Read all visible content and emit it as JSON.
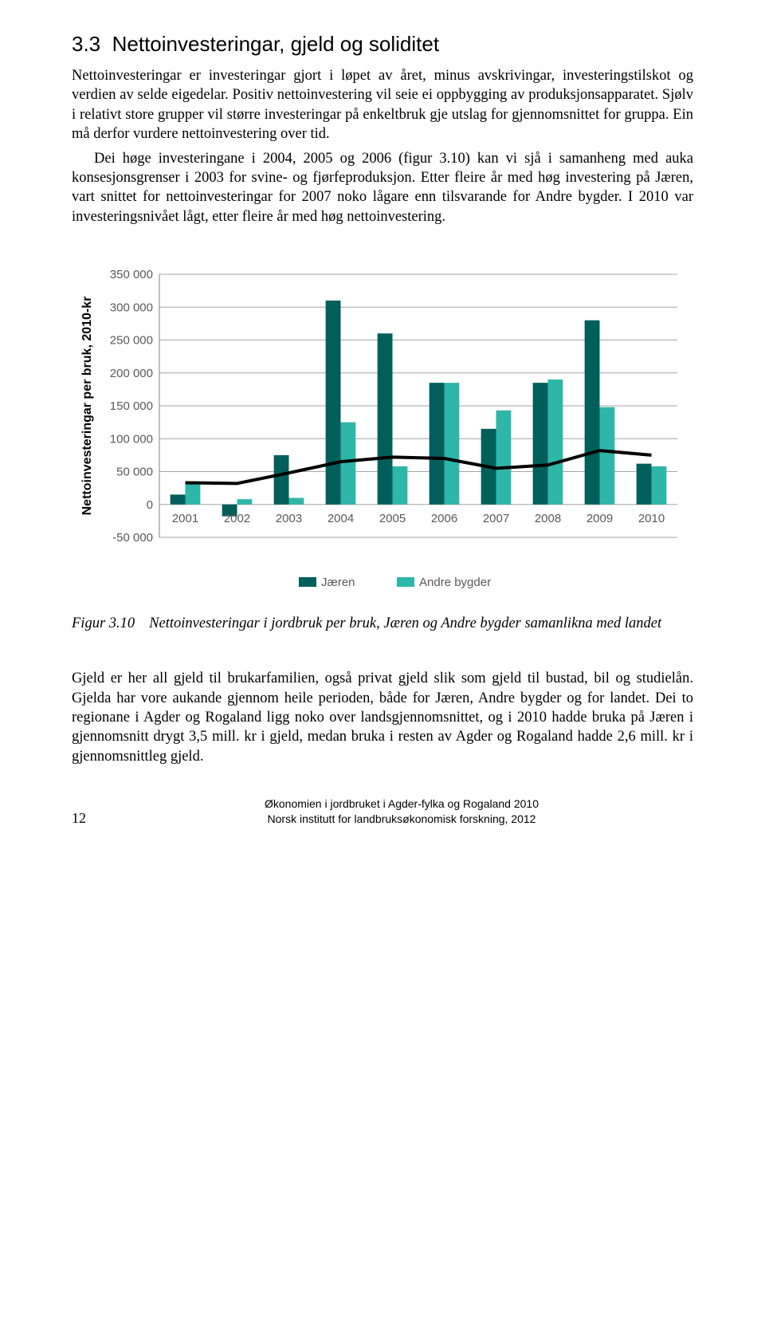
{
  "section": {
    "number": "3.3",
    "title": "Nettoinvesteringar, gjeld og soliditet"
  },
  "para1": "Nettoinvesteringar er investeringar gjort i løpet av året, minus avskrivingar, investeringstilskot og verdien av selde eigedelar. Positiv nettoinvestering vil seie ei oppbygging av produksjonsapparatet. Sjølv i relativt store grupper vil større investeringar på enkeltbruk gje utslag for gjennomsnittet for gruppa. Ein må derfor vurdere nettoinvestering over tid.",
  "para2": "Dei høge investeringane i 2004, 2005 og 2006 (figur 3.10) kan vi sjå i samanheng med auka konsesjonsgrenser i 2003 for svine- og fjørfeproduksjon. Etter fleire år med høg investering på Jæren, vart snittet for nettoinvesteringar for 2007 noko lågare enn tilsvarande for Andre bygder. I 2010 var investeringsnivået lågt, etter fleire år med høg nettoinvestering.",
  "chart": {
    "type": "bar-with-line",
    "y_axis_title": "Nettoinvesteringar per bruk, 2010-kr",
    "categories": [
      "2001",
      "2002",
      "2003",
      "2004",
      "2005",
      "2006",
      "2007",
      "2008",
      "2009",
      "2010"
    ],
    "series": [
      {
        "name": "Jæren",
        "color": "#005F5A",
        "values": [
          15000,
          -18000,
          75000,
          310000,
          260000,
          185000,
          115000,
          185000,
          280000,
          62000
        ]
      },
      {
        "name": "Andre bygder",
        "color": "#2EB6A8",
        "values": [
          35000,
          8000,
          10000,
          125000,
          58000,
          185000,
          143000,
          190000,
          148000,
          58000
        ]
      }
    ],
    "line": {
      "color": "#000000",
      "width": 4,
      "values": [
        33000,
        32000,
        48000,
        65000,
        72000,
        70000,
        55000,
        60000,
        82000,
        75000
      ]
    },
    "y_min": -50000,
    "y_max": 350000,
    "y_tick_step": 50000,
    "y_ticks": [
      "-50 000",
      "0",
      "50 000",
      "100 000",
      "150 000",
      "200 000",
      "250 000",
      "300 000",
      "350 000"
    ],
    "grid_color": "#a6a6a6",
    "axis_color": "#808080",
    "background_color": "#ffffff",
    "label_fontsize": 15,
    "axis_title_fontsize": 16,
    "bar_group_width": 0.58,
    "legend": {
      "items": [
        {
          "label": "Jæren",
          "color": "#005F5A"
        },
        {
          "label": "Andre bygder",
          "color": "#2EB6A8"
        }
      ]
    }
  },
  "figure_caption": {
    "label": "Figur 3.10",
    "text": "Nettoinvesteringar i jordbruk per bruk, Jæren og Andre bygder samanlikna med landet"
  },
  "para3": "Gjeld er her all gjeld til brukarfamilien, også privat gjeld slik som gjeld til bustad, bil og studielån. Gjelda har vore aukande gjennom heile perioden, både for Jæren, Andre bygder og for landet. Dei to regionane i Agder og Rogaland ligg noko over landsgjennomsnittet, og i 2010 hadde bruka på Jæren i gjennomsnitt drygt 3,5 mill. kr i gjeld, medan bruka i resten av Agder og Rogaland hadde 2,6 mill. kr i gjennomsnittleg gjeld.",
  "footer": {
    "page": "12",
    "line1": "Økonomien i jordbruket i Agder-fylka og Rogaland 2010",
    "line2": "Norsk institutt for landbruksøkonomisk forskning, 2012"
  }
}
